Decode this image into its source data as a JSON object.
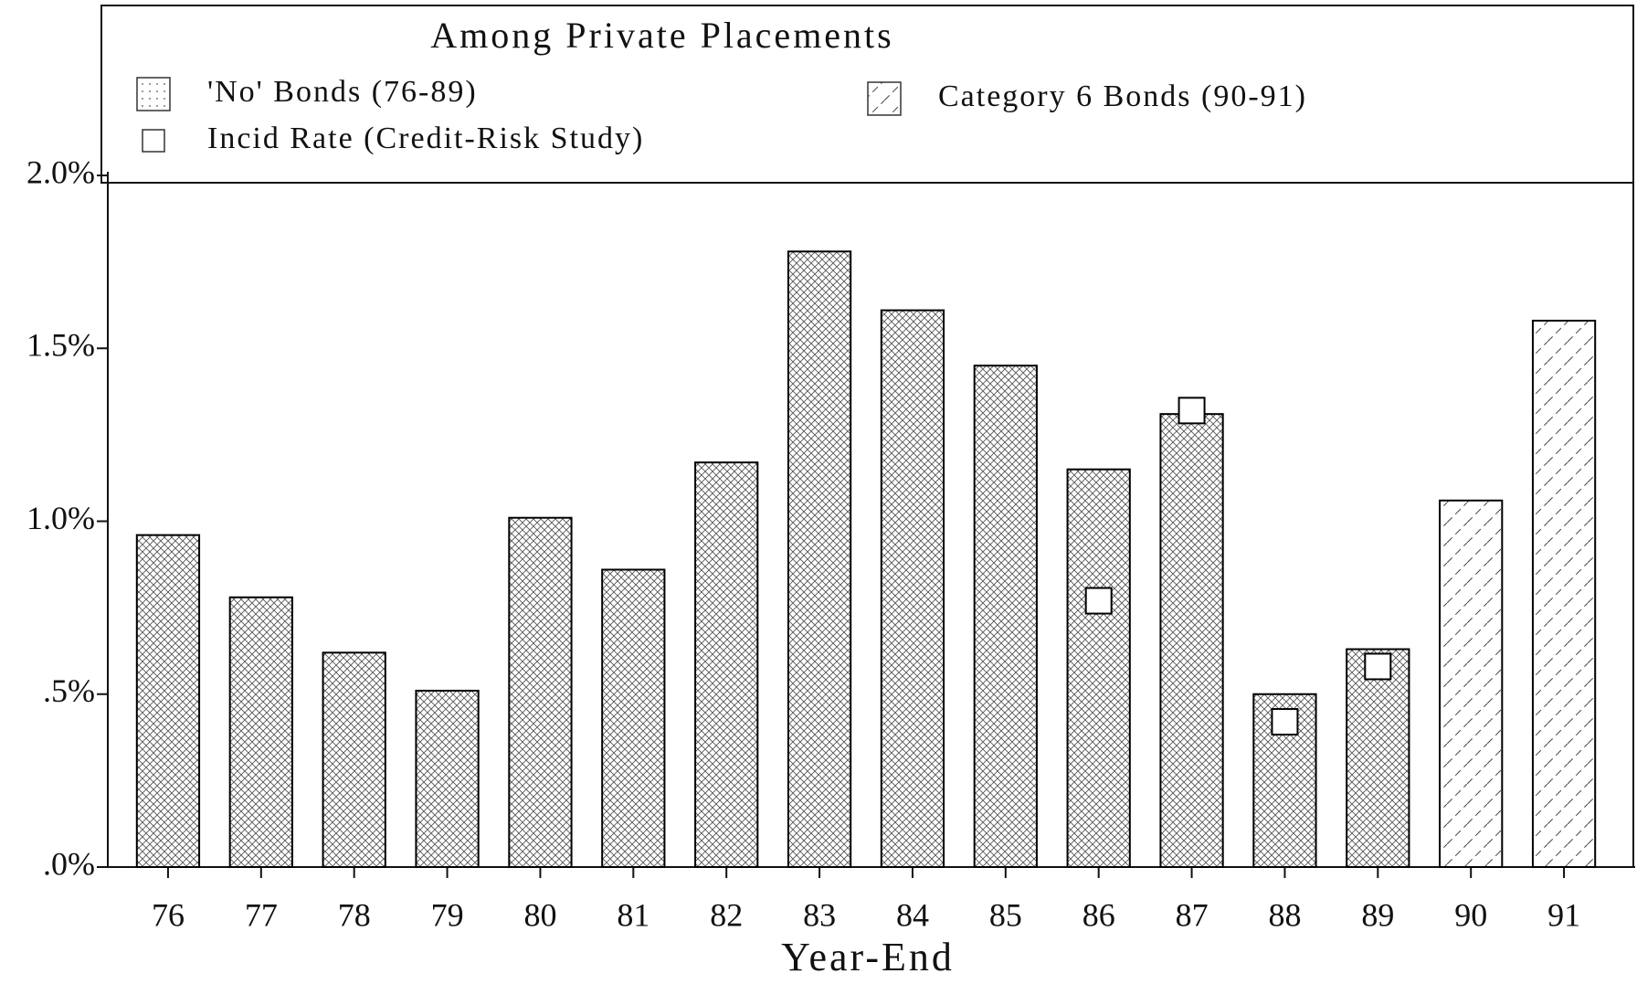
{
  "chart_data": {
    "type": "bar",
    "title": "Among Private Placements",
    "x_label": "Year-End",
    "categories": [
      "76",
      "77",
      "78",
      "79",
      "80",
      "81",
      "82",
      "83",
      "84",
      "85",
      "86",
      "87",
      "88",
      "89",
      "90",
      "91"
    ],
    "series": [
      {
        "name": "'No' Bonds (76-89)",
        "color": "#000000",
        "values": [
          0.96,
          0.78,
          0.62,
          0.51,
          1.01,
          0.86,
          1.17,
          1.78,
          1.61,
          1.45,
          1.15,
          1.31,
          0.5,
          0.63,
          null,
          null
        ]
      },
      {
        "name": "Category 6 Bonds (90-91)",
        "color": "#000000",
        "values": [
          null,
          null,
          null,
          null,
          null,
          null,
          null,
          null,
          null,
          null,
          null,
          null,
          null,
          null,
          1.06,
          1.58
        ]
      },
      {
        "name": "Incid Rate (Credit-Risk Study)",
        "type": "scatter",
        "color": "#000000",
        "values": [
          null,
          null,
          null,
          null,
          null,
          null,
          null,
          null,
          null,
          null,
          0.77,
          1.32,
          0.42,
          0.58,
          null,
          null
        ]
      }
    ],
    "ylim": [
      0,
      2
    ],
    "yticks": [
      {
        "value": 0,
        "label": ".0%"
      },
      {
        "value": 0.5,
        "label": ".5%"
      },
      {
        "value": 1,
        "label": "1.0%"
      },
      {
        "value": 1.5,
        "label": "1.5%"
      },
      {
        "value": 2,
        "label": "2.0%"
      }
    ]
  }
}
